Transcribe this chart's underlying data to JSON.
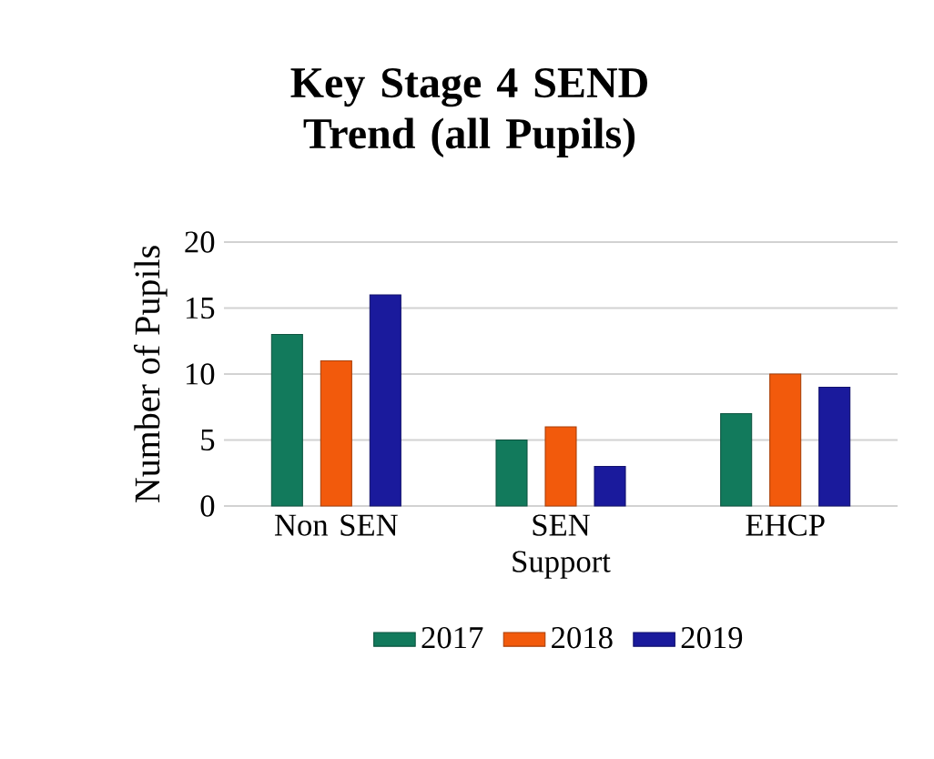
{
  "chart_data": {
    "type": "bar",
    "title": "Key Stage 4 SEND Trend (all Pupils)",
    "ylabel": "Number of Pupils",
    "categories": [
      "Non SEN",
      "SEN Support",
      "EHCP"
    ],
    "series": [
      {
        "name": "2017",
        "color": "#127a5c",
        "values": [
          13,
          5,
          7
        ]
      },
      {
        "name": "2018",
        "color": "#f25a0c",
        "values": [
          11,
          6,
          10
        ]
      },
      {
        "name": "2019",
        "color": "#1a1a9c",
        "values": [
          16,
          3,
          9
        ]
      }
    ],
    "ylim": [
      0,
      20
    ],
    "yticks": [
      0,
      5,
      10,
      15,
      20
    ],
    "grid": "y",
    "legend": "bottom"
  }
}
